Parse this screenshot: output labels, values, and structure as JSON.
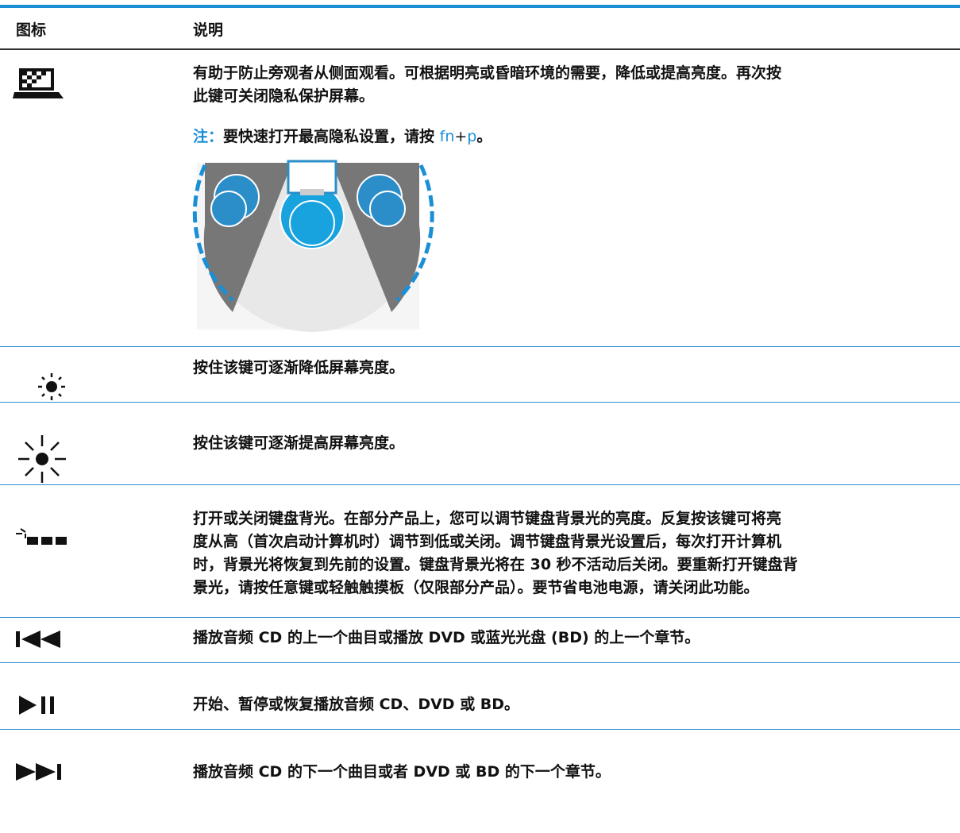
{
  "table": {
    "header": [
      "图标",
      "说明"
    ],
    "rows": [
      {
        "description": [
          "有助于防止旁观者从侧面观看。可根据明亮或昏暗环境的需要，降低或提高亮度。再次按",
          "此键可关闭隐私保护屏幕。"
        ],
        "note": {
          "label": "注：",
          "text": "要快速打开最高隐私设置，请按 ",
          "key1": "fn",
          "plus": "+",
          "key2": "p",
          "end": "。"
        }
      },
      {
        "description": [
          "按住该键可逐渐降低屏幕亮度。"
        ]
      },
      {
        "description": [
          "按住该键可逐渐提高屏幕亮度。"
        ]
      },
      {
        "description": [
          "打开或关闭键盘背光。在部分产品上，您可以调节键盘背景光的亮度。反复按该键可将亮",
          "度从高（首次启动计算机时）调节到低或关闭。调节键盘背景光设置后，每次打开计算机",
          "时，背景光将恢复到先前的设置。键盘背景光将在 30 秒不活动后关闭。要重新打开键盘背",
          "景光，请按任意键或轻触触摸板（仅限部分产品）。要节省电池电源，请关闭此功能。"
        ]
      },
      {
        "description": [
          "播放音频 CD 的上一个曲目或播放 DVD 或蓝光光盘 (BD) 的上一个章节。"
        ]
      },
      {
        "description": [
          "开始、暂停或恢复播放音频 CD、DVD 或 BD。"
        ]
      },
      {
        "description": [
          "播放音频 CD 的下一个曲目或者 DVD 或 BD 的下一个章节。"
        ]
      }
    ]
  }
}
